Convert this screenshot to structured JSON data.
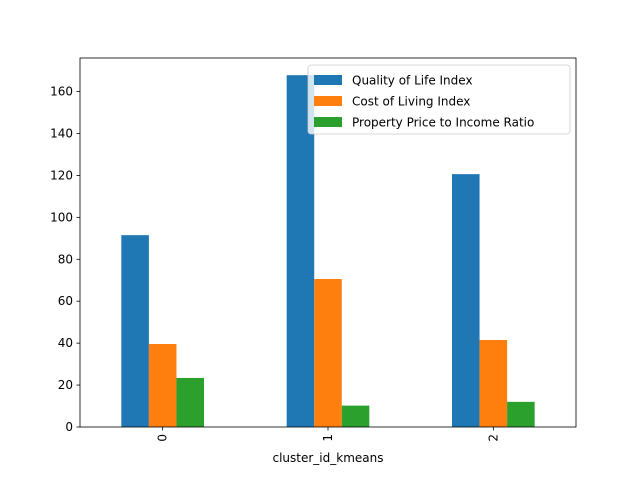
{
  "chart_data": {
    "type": "bar",
    "xlabel": "cluster_id_kmeans",
    "ylabel": "",
    "title": "",
    "categories": [
      "0",
      "1",
      "2"
    ],
    "ylim": [
      0,
      176
    ],
    "yticks": [
      0,
      20,
      40,
      60,
      80,
      100,
      120,
      140,
      160
    ],
    "grid": false,
    "legend_position": "top-right",
    "series": [
      {
        "name": "Quality of Life Index",
        "color": "#1f77b4",
        "values": [
          91.5,
          167.8,
          120.6
        ]
      },
      {
        "name": "Cost of Living Index",
        "color": "#ff7f0e",
        "values": [
          39.6,
          70.6,
          41.5
        ]
      },
      {
        "name": "Property Price to Income Ratio",
        "color": "#2ca02c",
        "values": [
          23.4,
          10.2,
          12.0
        ]
      }
    ]
  }
}
